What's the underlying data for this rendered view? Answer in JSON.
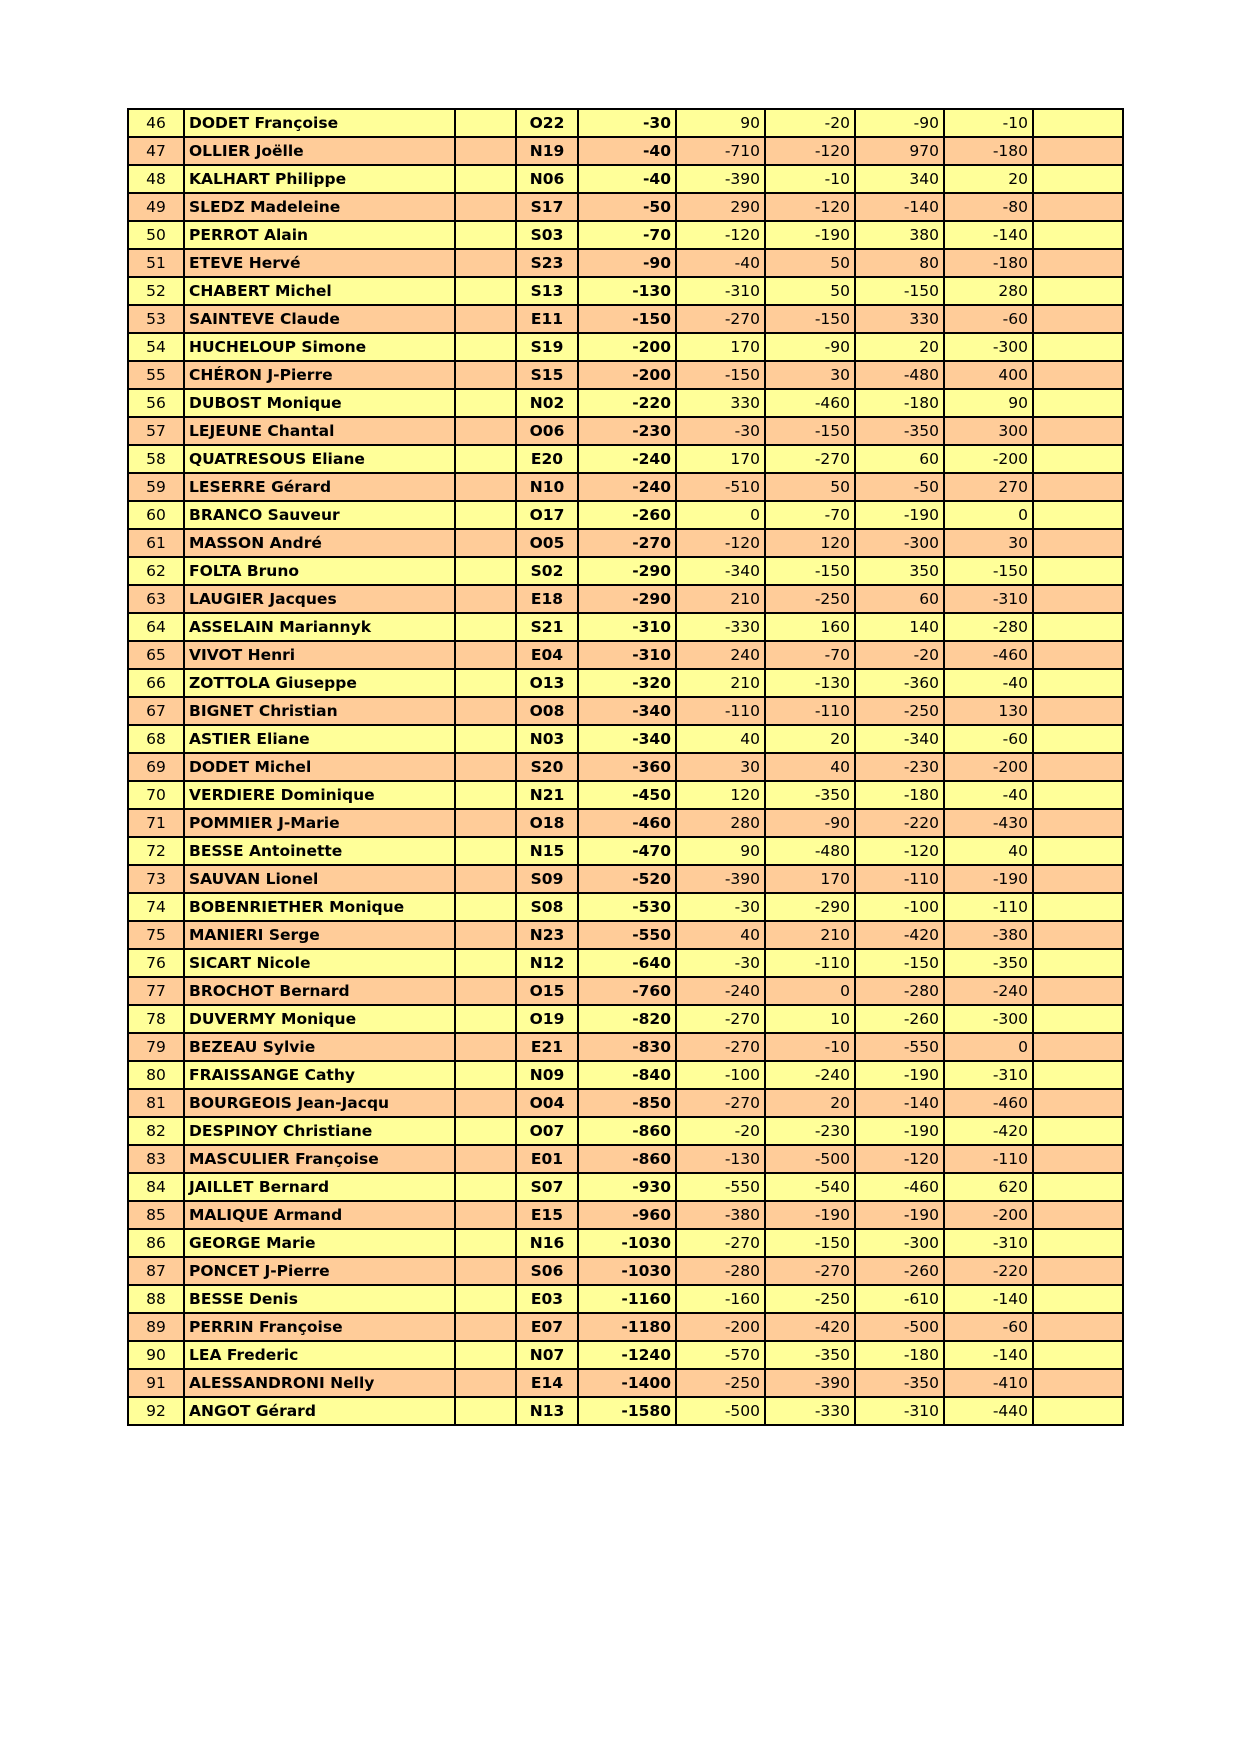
{
  "colors": {
    "row_odd": "#FFFF99",
    "row_even": "#FFCC99"
  },
  "rows": [
    {
      "rank": "46",
      "name": "DODET Françoise",
      "code": "O22",
      "total": "-30",
      "r": [
        "90",
        "-20",
        "-90",
        "-10"
      ]
    },
    {
      "rank": "47",
      "name": "OLLIER Joëlle",
      "code": "N19",
      "total": "-40",
      "r": [
        "-710",
        "-120",
        "970",
        "-180"
      ]
    },
    {
      "rank": "48",
      "name": "KALHART Philippe",
      "code": "N06",
      "total": "-40",
      "r": [
        "-390",
        "-10",
        "340",
        "20"
      ]
    },
    {
      "rank": "49",
      "name": "SLEDZ Madeleine",
      "code": "S17",
      "total": "-50",
      "r": [
        "290",
        "-120",
        "-140",
        "-80"
      ]
    },
    {
      "rank": "50",
      "name": "PERROT Alain",
      "code": "S03",
      "total": "-70",
      "r": [
        "-120",
        "-190",
        "380",
        "-140"
      ]
    },
    {
      "rank": "51",
      "name": "ETEVE Hervé",
      "code": "S23",
      "total": "-90",
      "r": [
        "-40",
        "50",
        "80",
        "-180"
      ]
    },
    {
      "rank": "52",
      "name": "CHABERT Michel",
      "code": "S13",
      "total": "-130",
      "r": [
        "-310",
        "50",
        "-150",
        "280"
      ]
    },
    {
      "rank": "53",
      "name": "SAINTEVE Claude",
      "code": "E11",
      "total": "-150",
      "r": [
        "-270",
        "-150",
        "330",
        "-60"
      ]
    },
    {
      "rank": "54",
      "name": "HUCHELOUP Simone",
      "code": "S19",
      "total": "-200",
      "r": [
        "170",
        "-90",
        "20",
        "-300"
      ]
    },
    {
      "rank": "55",
      "name": "CHÉRON J-Pierre",
      "code": "S15",
      "total": "-200",
      "r": [
        "-150",
        "30",
        "-480",
        "400"
      ]
    },
    {
      "rank": "56",
      "name": "DUBOST Monique",
      "code": "N02",
      "total": "-220",
      "r": [
        "330",
        "-460",
        "-180",
        "90"
      ]
    },
    {
      "rank": "57",
      "name": "LEJEUNE Chantal",
      "code": "O06",
      "total": "-230",
      "r": [
        "-30",
        "-150",
        "-350",
        "300"
      ]
    },
    {
      "rank": "58",
      "name": "QUATRESOUS Eliane",
      "code": "E20",
      "total": "-240",
      "r": [
        "170",
        "-270",
        "60",
        "-200"
      ]
    },
    {
      "rank": "59",
      "name": "LESERRE Gérard",
      "code": "N10",
      "total": "-240",
      "r": [
        "-510",
        "50",
        "-50",
        "270"
      ]
    },
    {
      "rank": "60",
      "name": "BRANCO Sauveur",
      "code": "O17",
      "total": "-260",
      "r": [
        "0",
        "-70",
        "-190",
        "0"
      ]
    },
    {
      "rank": "61",
      "name": "MASSON André",
      "code": "O05",
      "total": "-270",
      "r": [
        "-120",
        "120",
        "-300",
        "30"
      ]
    },
    {
      "rank": "62",
      "name": "FOLTA Bruno",
      "code": "S02",
      "total": "-290",
      "r": [
        "-340",
        "-150",
        "350",
        "-150"
      ]
    },
    {
      "rank": "63",
      "name": "LAUGIER Jacques",
      "code": "E18",
      "total": "-290",
      "r": [
        "210",
        "-250",
        "60",
        "-310"
      ]
    },
    {
      "rank": "64",
      "name": "ASSELAIN Mariannyk",
      "code": "S21",
      "total": "-310",
      "r": [
        "-330",
        "160",
        "140",
        "-280"
      ]
    },
    {
      "rank": "65",
      "name": "VIVOT Henri",
      "code": "E04",
      "total": "-310",
      "r": [
        "240",
        "-70",
        "-20",
        "-460"
      ]
    },
    {
      "rank": "66",
      "name": "ZOTTOLA Giuseppe",
      "code": "O13",
      "total": "-320",
      "r": [
        "210",
        "-130",
        "-360",
        "-40"
      ]
    },
    {
      "rank": "67",
      "name": "BIGNET Christian",
      "code": "O08",
      "total": "-340",
      "r": [
        "-110",
        "-110",
        "-250",
        "130"
      ]
    },
    {
      "rank": "68",
      "name": "ASTIER Eliane",
      "code": "N03",
      "total": "-340",
      "r": [
        "40",
        "20",
        "-340",
        "-60"
      ]
    },
    {
      "rank": "69",
      "name": "DODET Michel",
      "code": "S20",
      "total": "-360",
      "r": [
        "30",
        "40",
        "-230",
        "-200"
      ]
    },
    {
      "rank": "70",
      "name": "VERDIERE Dominique",
      "code": "N21",
      "total": "-450",
      "r": [
        "120",
        "-350",
        "-180",
        "-40"
      ]
    },
    {
      "rank": "71",
      "name": "POMMIER J-Marie",
      "code": "O18",
      "total": "-460",
      "r": [
        "280",
        "-90",
        "-220",
        "-430"
      ]
    },
    {
      "rank": "72",
      "name": "BESSE Antoinette",
      "code": "N15",
      "total": "-470",
      "r": [
        "90",
        "-480",
        "-120",
        "40"
      ]
    },
    {
      "rank": "73",
      "name": "SAUVAN Lionel",
      "code": "S09",
      "total": "-520",
      "r": [
        "-390",
        "170",
        "-110",
        "-190"
      ]
    },
    {
      "rank": "74",
      "name": "BOBENRIETHER Monique",
      "code": "S08",
      "total": "-530",
      "r": [
        "-30",
        "-290",
        "-100",
        "-110"
      ]
    },
    {
      "rank": "75",
      "name": "MANIERI Serge",
      "code": "N23",
      "total": "-550",
      "r": [
        "40",
        "210",
        "-420",
        "-380"
      ]
    },
    {
      "rank": "76",
      "name": "SICART Nicole",
      "code": "N12",
      "total": "-640",
      "r": [
        "-30",
        "-110",
        "-150",
        "-350"
      ]
    },
    {
      "rank": "77",
      "name": "BROCHOT Bernard",
      "code": "O15",
      "total": "-760",
      "r": [
        "-240",
        "0",
        "-280",
        "-240"
      ]
    },
    {
      "rank": "78",
      "name": "DUVERMY Monique",
      "code": "O19",
      "total": "-820",
      "r": [
        "-270",
        "10",
        "-260",
        "-300"
      ]
    },
    {
      "rank": "79",
      "name": "BEZEAU Sylvie",
      "code": "E21",
      "total": "-830",
      "r": [
        "-270",
        "-10",
        "-550",
        "0"
      ]
    },
    {
      "rank": "80",
      "name": "FRAISSANGE Cathy",
      "code": "N09",
      "total": "-840",
      "r": [
        "-100",
        "-240",
        "-190",
        "-310"
      ]
    },
    {
      "rank": "81",
      "name": "BOURGEOIS Jean-Jacqu",
      "code": "O04",
      "total": "-850",
      "r": [
        "-270",
        "20",
        "-140",
        "-460"
      ]
    },
    {
      "rank": "82",
      "name": "DESPINOY Christiane",
      "code": "O07",
      "total": "-860",
      "r": [
        "-20",
        "-230",
        "-190",
        "-420"
      ]
    },
    {
      "rank": "83",
      "name": "MASCULIER Françoise",
      "code": "E01",
      "total": "-860",
      "r": [
        "-130",
        "-500",
        "-120",
        "-110"
      ]
    },
    {
      "rank": "84",
      "name": "JAILLET Bernard",
      "code": "S07",
      "total": "-930",
      "r": [
        "-550",
        "-540",
        "-460",
        "620"
      ]
    },
    {
      "rank": "85",
      "name": "MALIQUE Armand",
      "code": "E15",
      "total": "-960",
      "r": [
        "-380",
        "-190",
        "-190",
        "-200"
      ]
    },
    {
      "rank": "86",
      "name": "GEORGE Marie",
      "code": "N16",
      "total": "-1030",
      "r": [
        "-270",
        "-150",
        "-300",
        "-310"
      ]
    },
    {
      "rank": "87",
      "name": "PONCET J-Pierre",
      "code": "S06",
      "total": "-1030",
      "r": [
        "-280",
        "-270",
        "-260",
        "-220"
      ]
    },
    {
      "rank": "88",
      "name": "BESSE Denis",
      "code": "E03",
      "total": "-1160",
      "r": [
        "-160",
        "-250",
        "-610",
        "-140"
      ]
    },
    {
      "rank": "89",
      "name": "PERRIN Françoise",
      "code": "E07",
      "total": "-1180",
      "r": [
        "-200",
        "-420",
        "-500",
        "-60"
      ]
    },
    {
      "rank": "90",
      "name": "LEA Frederic",
      "code": "N07",
      "total": "-1240",
      "r": [
        "-570",
        "-350",
        "-180",
        "-140"
      ]
    },
    {
      "rank": "91",
      "name": "ALESSANDRONI Nelly",
      "code": "E14",
      "total": "-1400",
      "r": [
        "-250",
        "-390",
        "-350",
        "-410"
      ]
    },
    {
      "rank": "92",
      "name": "ANGOT Gérard",
      "code": "N13",
      "total": "-1580",
      "r": [
        "-500",
        "-330",
        "-310",
        "-440"
      ]
    }
  ]
}
